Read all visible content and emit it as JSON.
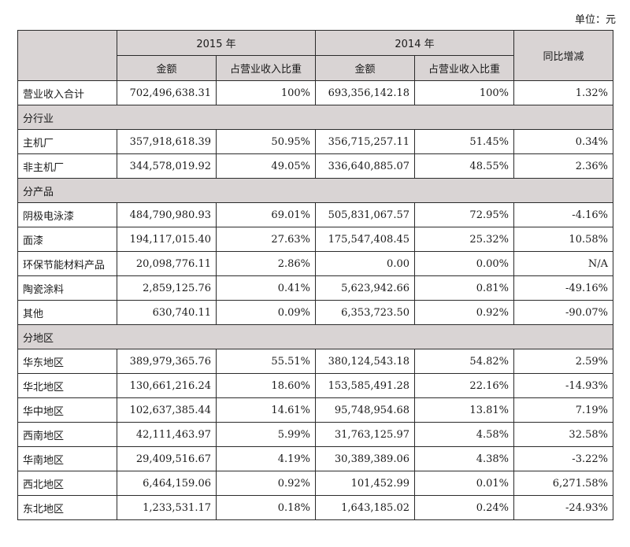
{
  "unit_text": "单位：元",
  "header": {
    "year_2015": "2015 年",
    "year_2014": "2014 年",
    "yoy": "同比增减",
    "amount_2015": "金额",
    "ratio_2015": "占营业收入比重",
    "amount_2014": "金额",
    "ratio_2014": "占营业收入比重"
  },
  "total": {
    "label": "营业收入合计",
    "amount_2015": "702,496,638.31",
    "ratio_2015": "100%",
    "amount_2014": "693,356,142.18",
    "ratio_2014": "100%",
    "yoy": "1.32%"
  },
  "sections": [
    {
      "title": "分行业",
      "rows": [
        {
          "label": "主机厂",
          "amount_2015": "357,918,618.39",
          "ratio_2015": "50.95%",
          "amount_2014": "356,715,257.11",
          "ratio_2014": "51.45%",
          "yoy": "0.34%"
        },
        {
          "label": "非主机厂",
          "amount_2015": "344,578,019.92",
          "ratio_2015": "49.05%",
          "amount_2014": "336,640,885.07",
          "ratio_2014": "48.55%",
          "yoy": "2.36%"
        }
      ]
    },
    {
      "title": "分产品",
      "rows": [
        {
          "label": "阴极电泳漆",
          "amount_2015": "484,790,980.93",
          "ratio_2015": "69.01%",
          "amount_2014": "505,831,067.57",
          "ratio_2014": "72.95%",
          "yoy": "-4.16%"
        },
        {
          "label": "面漆",
          "amount_2015": "194,117,015.40",
          "ratio_2015": "27.63%",
          "amount_2014": "175,547,408.45",
          "ratio_2014": "25.32%",
          "yoy": "10.58%"
        },
        {
          "label": "环保节能材料产品",
          "amount_2015": "20,098,776.11",
          "ratio_2015": "2.86%",
          "amount_2014": "0.00",
          "ratio_2014": "0.00%",
          "yoy": "N/A"
        },
        {
          "label": "陶瓷涂料",
          "amount_2015": "2,859,125.76",
          "ratio_2015": "0.41%",
          "amount_2014": "5,623,942.66",
          "ratio_2014": "0.81%",
          "yoy": "-49.16%"
        },
        {
          "label": "其他",
          "amount_2015": "630,740.11",
          "ratio_2015": "0.09%",
          "amount_2014": "6,353,723.50",
          "ratio_2014": "0.92%",
          "yoy": "-90.07%"
        }
      ]
    },
    {
      "title": "分地区",
      "rows": [
        {
          "label": "华东地区",
          "amount_2015": "389,979,365.76",
          "ratio_2015": "55.51%",
          "amount_2014": "380,124,543.18",
          "ratio_2014": "54.82%",
          "yoy": "2.59%"
        },
        {
          "label": "华北地区",
          "amount_2015": "130,661,216.24",
          "ratio_2015": "18.60%",
          "amount_2014": "153,585,491.28",
          "ratio_2014": "22.16%",
          "yoy": "-14.93%"
        },
        {
          "label": "华中地区",
          "amount_2015": "102,637,385.44",
          "ratio_2015": "14.61%",
          "amount_2014": "95,748,954.68",
          "ratio_2014": "13.81%",
          "yoy": "7.19%"
        },
        {
          "label": "西南地区",
          "amount_2015": "42,111,463.97",
          "ratio_2015": "5.99%",
          "amount_2014": "31,763,125.97",
          "ratio_2014": "4.58%",
          "yoy": "32.58%"
        },
        {
          "label": "华南地区",
          "amount_2015": "29,409,516.67",
          "ratio_2015": "4.19%",
          "amount_2014": "30,389,389.06",
          "ratio_2014": "4.38%",
          "yoy": "-3.22%"
        },
        {
          "label": "西北地区",
          "amount_2015": "6,464,159.06",
          "ratio_2015": "0.92%",
          "amount_2014": "101,452.99",
          "ratio_2014": "0.01%",
          "yoy": "6,271.58%"
        },
        {
          "label": "东北地区",
          "amount_2015": "1,233,531.17",
          "ratio_2015": "0.18%",
          "amount_2014": "1,643,185.02",
          "ratio_2014": "0.24%",
          "yoy": "-24.93%"
        }
      ]
    }
  ]
}
